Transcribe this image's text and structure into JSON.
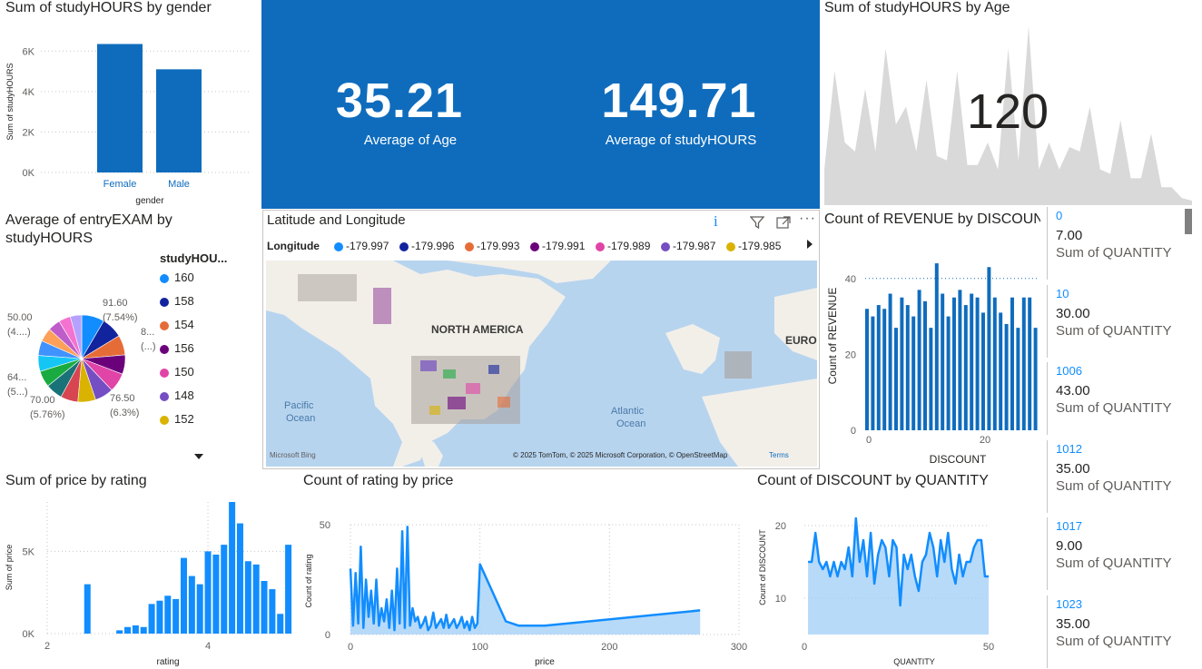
{
  "gender_chart": {
    "title": "Sum of studyHOURS by gender",
    "ylabel": "Sum of studyHOURS",
    "xlabel": "gender",
    "chart_data": {
      "type": "bar",
      "categories": [
        "Female",
        "Male"
      ],
      "values": [
        6350,
        5100
      ],
      "yticks": [
        "0K",
        "2K",
        "4K",
        "6K"
      ],
      "ylim": [
        0,
        7000
      ]
    }
  },
  "kpis": {
    "age": {
      "value": "35.21",
      "label": "Average of Age"
    },
    "hours": {
      "value": "149.71",
      "label": "Average of studyHOURS"
    }
  },
  "age_chart": {
    "title": "Sum of studyHOURS by Age",
    "kpi": "120",
    "chart_data": {
      "type": "area",
      "values": [
        40,
        150,
        70,
        60,
        130,
        60,
        175,
        90,
        110,
        60,
        140,
        55,
        50,
        150,
        45,
        45,
        70,
        40,
        175,
        50,
        200,
        40,
        70,
        40,
        65,
        60,
        110,
        40,
        35,
        95,
        30,
        30,
        80,
        20,
        20,
        8,
        5
      ],
      "ylim": [
        0,
        205
      ],
      "color": "#d9d9d9"
    }
  },
  "pie_chart": {
    "title_line1": "Average of entryEXAM by",
    "title_line2": "studyHOURS",
    "legend_title": "studyHOU...",
    "legend": [
      {
        "label": "160",
        "color": "#118dff"
      },
      {
        "label": "158",
        "color": "#12239e"
      },
      {
        "label": "154",
        "color": "#e66c37"
      },
      {
        "label": "156",
        "color": "#6b007b"
      },
      {
        "label": "150",
        "color": "#e044a7"
      },
      {
        "label": "148",
        "color": "#744ec2"
      },
      {
        "label": "152",
        "color": "#d9b300"
      }
    ],
    "data_labels": {
      "a": "91.60",
      "a2": "(7.54%)",
      "b": "8...",
      "b2": "(...)",
      "c": "76.50",
      "c2": "(6.3%)",
      "d": "70.00",
      "d2": "(5.76%)",
      "e": "64...",
      "e2": "(5...)",
      "f": "50.00",
      "f2": "(4....)"
    },
    "chart_data": {
      "type": "pie",
      "values": [
        91.6,
        85,
        80,
        78,
        76.5,
        75,
        72,
        70,
        68,
        66,
        64,
        60,
        55,
        50,
        48,
        46
      ],
      "colors": [
        "#118dff",
        "#12239e",
        "#e66c37",
        "#6b007b",
        "#e044a7",
        "#744ec2",
        "#d9b300",
        "#d64550",
        "#197278",
        "#1aab40",
        "#15c6f4",
        "#4092ff",
        "#ffa058",
        "#be5dc9",
        "#f472d0",
        "#b5a1ff"
      ]
    }
  },
  "map": {
    "title": "Latitude and Longitude",
    "legend_title": "Longitude",
    "legend": [
      {
        "label": "-179.997",
        "color": "#118dff"
      },
      {
        "label": "-179.996",
        "color": "#12239e"
      },
      {
        "label": "-179.993",
        "color": "#e66c37"
      },
      {
        "label": "-179.991",
        "color": "#6b007b"
      },
      {
        "label": "-179.989",
        "color": "#e044a7"
      },
      {
        "label": "-179.987",
        "color": "#744ec2"
      },
      {
        "label": "-179.985",
        "color": "#d9b300"
      }
    ],
    "labels": {
      "na": "NORTH AMERICA",
      "eu": "EURO",
      "pacific1": "Pacific",
      "pacific2": "Ocean",
      "atlantic1": "Atlantic",
      "atlantic2": "Ocean"
    },
    "attribution": "© 2025 TomTom, © 2025 Microsoft Corporation, © OpenStreetMap",
    "terms": "Terms",
    "bing": "Microsoft Bing"
  },
  "revenue_chart": {
    "title": "Count of REVENUE by DISCOUNT",
    "ylabel": "Count of REVENUE",
    "xlabel": "DISCOUNT",
    "chart_data": {
      "type": "bar",
      "values": [
        32,
        30,
        33,
        32,
        36,
        27,
        35,
        33,
        30,
        37,
        34,
        27,
        44,
        36,
        30,
        35,
        37,
        33,
        36,
        35,
        31,
        43,
        35,
        31,
        28,
        35,
        27,
        35,
        35,
        27
      ],
      "yticks": [
        "0",
        "20",
        "40"
      ],
      "xticks": [
        "0",
        "20"
      ],
      "ylim": [
        0,
        50
      ],
      "reference_line": 40
    }
  },
  "quantity_list": {
    "items": [
      {
        "id": "0",
        "value": "7.00",
        "label": "Sum of QUANTITY"
      },
      {
        "id": "10",
        "value": "30.00",
        "label": "Sum of QUANTITY"
      },
      {
        "id": "1006",
        "value": "43.00",
        "label": "Sum of QUANTITY"
      },
      {
        "id": "1012",
        "value": "35.00",
        "label": "Sum of QUANTITY"
      },
      {
        "id": "1017",
        "value": "9.00",
        "label": "Sum of QUANTITY"
      },
      {
        "id": "1023",
        "value": "35.00",
        "label": "Sum of QUANTITY"
      }
    ]
  },
  "price_chart": {
    "title": "Sum of price by rating",
    "ylabel": "Sum of price",
    "xlabel": "rating",
    "chart_data": {
      "type": "bar",
      "x": [
        2.5,
        2.9,
        3.0,
        3.1,
        3.2,
        3.3,
        3.4,
        3.5,
        3.6,
        3.7,
        3.8,
        3.9,
        4.0,
        4.1,
        4.2,
        4.3,
        4.4,
        4.5,
        4.6,
        4.7,
        4.8,
        4.9,
        5.0
      ],
      "values": [
        3000,
        200,
        400,
        500,
        400,
        1800,
        2000,
        2300,
        2100,
        4600,
        3500,
        3000,
        5000,
        4800,
        5400,
        8000,
        6700,
        4400,
        4200,
        3200,
        2700,
        1200,
        5400
      ],
      "yticks": [
        "0K",
        "5K"
      ],
      "xticks": [
        "2",
        "4"
      ],
      "ylim": [
        0,
        8000
      ]
    }
  },
  "rating_chart": {
    "title": "Count of rating by price",
    "ylabel": "Count of rating",
    "xlabel": "price",
    "chart_data": {
      "type": "area",
      "x": [
        0,
        2,
        4,
        6,
        8,
        10,
        12,
        14,
        16,
        18,
        20,
        22,
        24,
        26,
        28,
        30,
        32,
        34,
        36,
        38,
        40,
        42,
        44,
        46,
        48,
        50,
        52,
        54,
        56,
        58,
        60,
        62,
        64,
        66,
        68,
        70,
        72,
        74,
        76,
        78,
        80,
        82,
        84,
        86,
        88,
        90,
        92,
        94,
        96,
        98,
        100,
        120,
        130,
        150,
        270
      ],
      "values": [
        30,
        4,
        28,
        5,
        40,
        3,
        25,
        8,
        20,
        5,
        25,
        4,
        12,
        6,
        16,
        3,
        20,
        2,
        30,
        5,
        47,
        3,
        49,
        4,
        12,
        6,
        8,
        3,
        5,
        8,
        2,
        4,
        10,
        3,
        5,
        7,
        3,
        9,
        3,
        5,
        7,
        3,
        5,
        8,
        3,
        6,
        2,
        8,
        3,
        5,
        32,
        6,
        4,
        4,
        11
      ],
      "yticks": [
        "0",
        "50"
      ],
      "xticks": [
        "0",
        "100",
        "200",
        "300"
      ],
      "xlim": [
        0,
        300
      ],
      "ylim": [
        0,
        50
      ]
    }
  },
  "discount_chart": {
    "title": "Count of DISCOUNT by QUANTITY",
    "ylabel": "Count of DISCOUNT",
    "xlabel": "QUANTITY",
    "chart_data": {
      "type": "area",
      "values": [
        15,
        15,
        19,
        15,
        14,
        15,
        13,
        15,
        13,
        15,
        14,
        17,
        13,
        21,
        15,
        18,
        13,
        19,
        12,
        16,
        18,
        17,
        13,
        18,
        17,
        9,
        16,
        14,
        16,
        13,
        11,
        15,
        16,
        19,
        17,
        13,
        18,
        15,
        19,
        14,
        12,
        16,
        13,
        15,
        15,
        17,
        18,
        18,
        13,
        13
      ],
      "yticks": [
        "10",
        "20"
      ],
      "xticks": [
        "0",
        "50"
      ],
      "ylim": [
        5,
        23
      ]
    }
  }
}
